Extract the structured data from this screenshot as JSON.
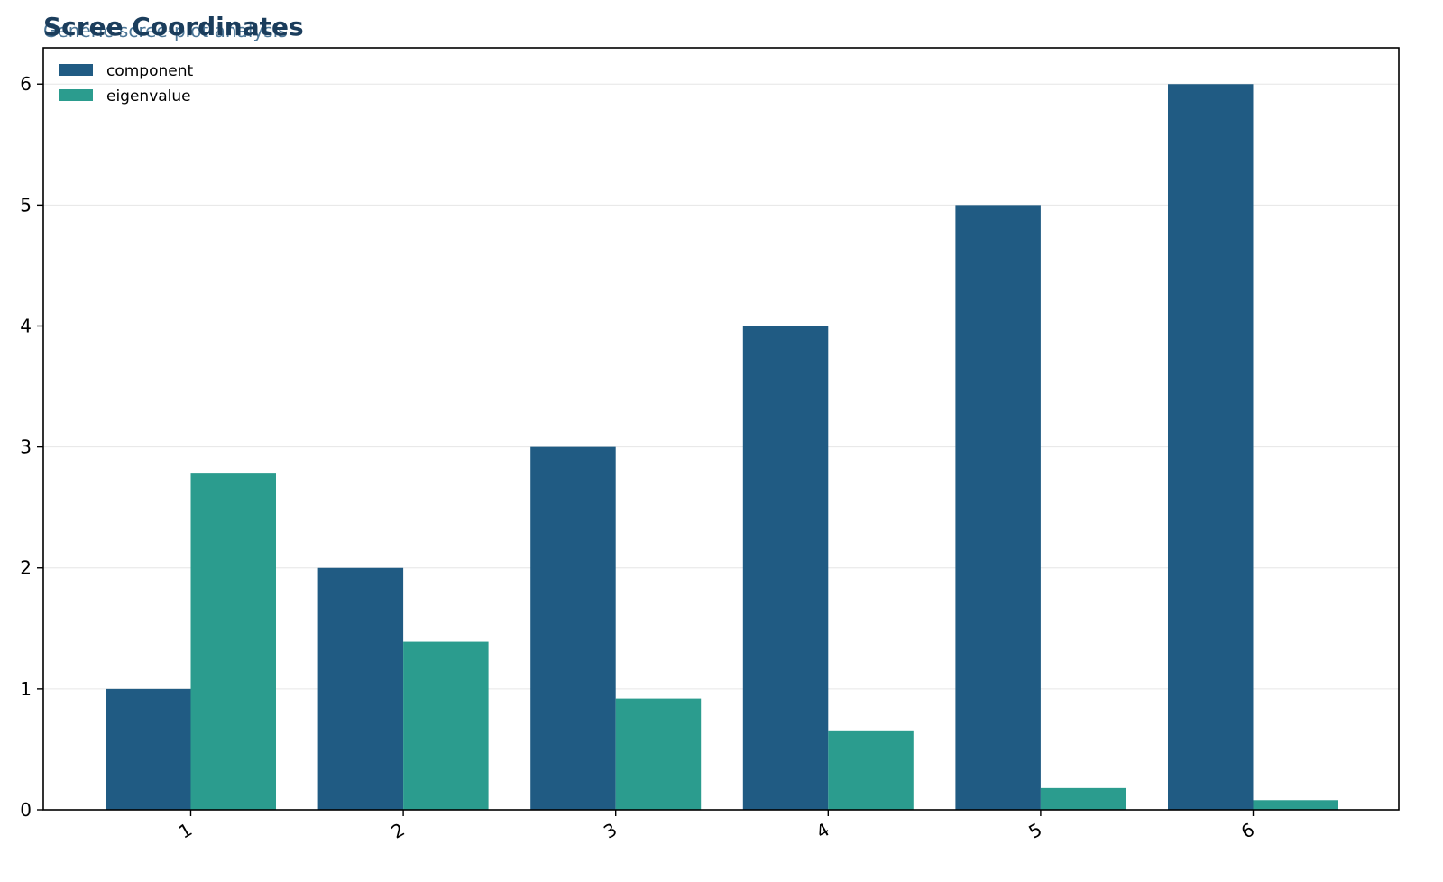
{
  "chart_data": {
    "type": "bar",
    "title": "Scree Coordinates",
    "subtitle": "Generic scree-plot analysis",
    "xlabel": "",
    "ylabel": "",
    "categories": [
      "1",
      "2",
      "3",
      "4",
      "5",
      "6"
    ],
    "series": [
      {
        "name": "component",
        "values": [
          1,
          2,
          3,
          4,
          5,
          6
        ],
        "color": "#205b83"
      },
      {
        "name": "eigenvalue",
        "values": [
          2.78,
          1.39,
          0.92,
          0.65,
          0.18,
          0.08
        ],
        "color": "#2b9c8e"
      }
    ],
    "ylim": [
      0,
      6.3
    ],
    "yticks": [
      "0",
      "1",
      "2",
      "3",
      "4",
      "5",
      "6"
    ],
    "grid": "y",
    "legend": "top-left",
    "title_color": "#1b3d5c",
    "subtitle_color": "#2d5f85"
  }
}
